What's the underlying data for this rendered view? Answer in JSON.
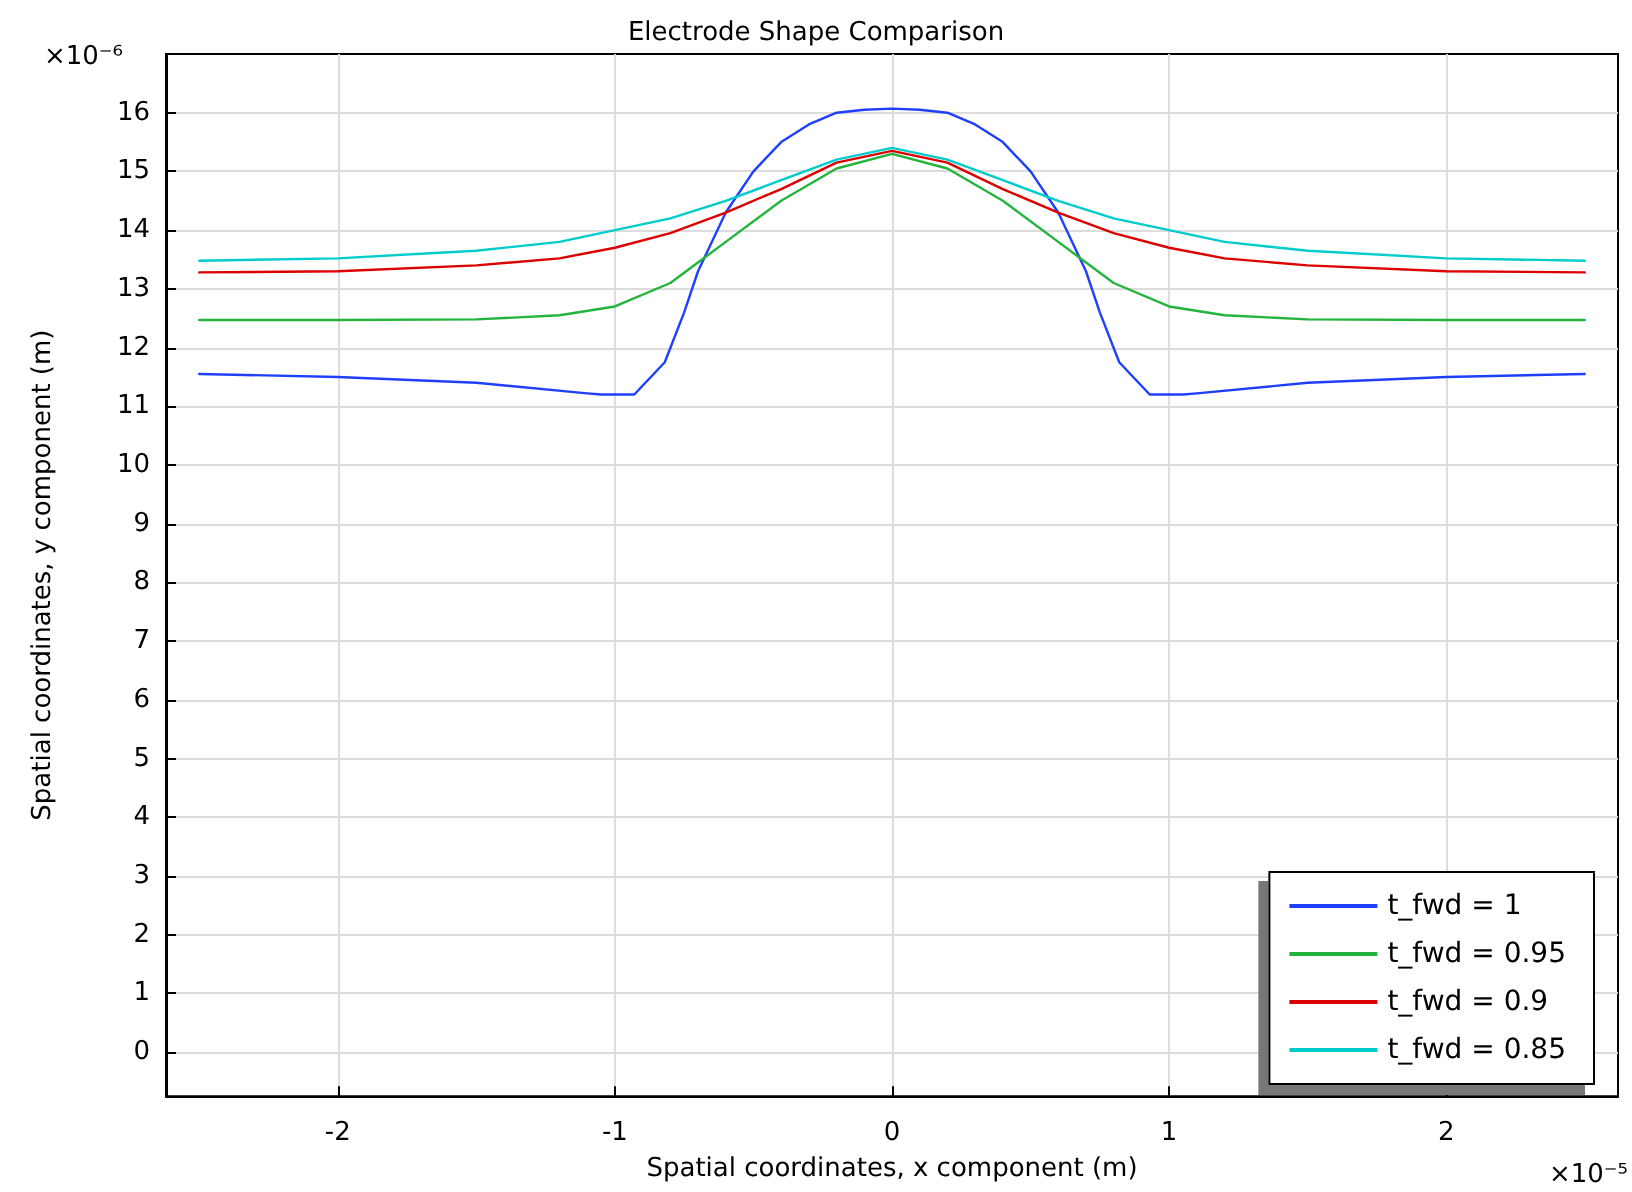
{
  "chart_data": {
    "type": "line",
    "title": "Electrode Shape Comparison",
    "xlabel": "Spatial coordinates, x component (m)",
    "ylabel": "Spatial coordinates, y component (m)",
    "annotations": [
      "×10⁻⁶",
      "×10⁻⁵"
    ],
    "xlim": [
      -2.62,
      2.62
    ],
    "ylim": [
      -0.75,
      17
    ],
    "xticks": [
      -2,
      -1,
      0,
      1,
      2
    ],
    "yticks": [
      0,
      1,
      2,
      3,
      4,
      5,
      6,
      7,
      8,
      9,
      10,
      11,
      12,
      13,
      14,
      15,
      16
    ],
    "grid": true,
    "legend": "bottom right",
    "line_style": "solid",
    "marker": "none",
    "series": [
      {
        "name": "t_fwd = 1",
        "color": "#1f3fff",
        "x": [
          -2.5,
          -2,
          -1.5,
          -1.1,
          -1.05,
          -0.93,
          -0.82,
          -0.75,
          -0.7,
          -0.6,
          -0.5,
          -0.4,
          -0.3,
          -0.2,
          -0.1,
          0,
          0.1,
          0.2,
          0.3,
          0.4,
          0.5,
          0.6,
          0.7,
          0.75,
          0.82,
          0.93,
          1.05,
          1.1,
          1.5,
          2,
          2.5
        ],
        "values": [
          11.55,
          11.5,
          11.4,
          11.22,
          11.2,
          11.2,
          11.75,
          12.6,
          13.3,
          14.3,
          15.0,
          15.5,
          15.8,
          16.0,
          16.05,
          16.07,
          16.05,
          16.0,
          15.8,
          15.5,
          15.0,
          14.3,
          13.3,
          12.6,
          11.75,
          11.2,
          11.2,
          11.22,
          11.4,
          11.5,
          11.55
        ]
      },
      {
        "name": "t_fwd = 0.95",
        "color": "#22b43c",
        "x": [
          -2.5,
          -2,
          -1.5,
          -1.2,
          -1,
          -0.8,
          -0.6,
          -0.4,
          -0.2,
          0,
          0.2,
          0.4,
          0.6,
          0.8,
          1,
          1.2,
          1.5,
          2,
          2.5
        ],
        "values": [
          12.47,
          12.47,
          12.48,
          12.55,
          12.7,
          13.1,
          13.8,
          14.5,
          15.05,
          15.3,
          15.05,
          14.5,
          13.8,
          13.1,
          12.7,
          12.55,
          12.48,
          12.47,
          12.47
        ]
      },
      {
        "name": "t_fwd = 0.9",
        "color": "#dd0000",
        "x": [
          -2.5,
          -2,
          -1.5,
          -1.2,
          -1,
          -0.8,
          -0.6,
          -0.4,
          -0.2,
          0,
          0.2,
          0.4,
          0.6,
          0.8,
          1,
          1.2,
          1.5,
          2,
          2.5
        ],
        "values": [
          13.28,
          13.3,
          13.4,
          13.52,
          13.7,
          13.95,
          14.3,
          14.7,
          15.15,
          15.35,
          15.15,
          14.7,
          14.3,
          13.95,
          13.7,
          13.52,
          13.4,
          13.3,
          13.28
        ]
      },
      {
        "name": "t_fwd = 0.85",
        "color": "#00cccc",
        "x": [
          -2.5,
          -2,
          -1.5,
          -1.2,
          -1,
          -0.8,
          -0.6,
          -0.4,
          -0.2,
          0,
          0.2,
          0.4,
          0.6,
          0.8,
          1,
          1.2,
          1.5,
          2,
          2.5
        ],
        "values": [
          13.48,
          13.52,
          13.65,
          13.8,
          14.0,
          14.2,
          14.5,
          14.85,
          15.2,
          15.4,
          15.2,
          14.85,
          14.5,
          14.2,
          14.0,
          13.8,
          13.65,
          13.52,
          13.48
        ]
      }
    ]
  }
}
